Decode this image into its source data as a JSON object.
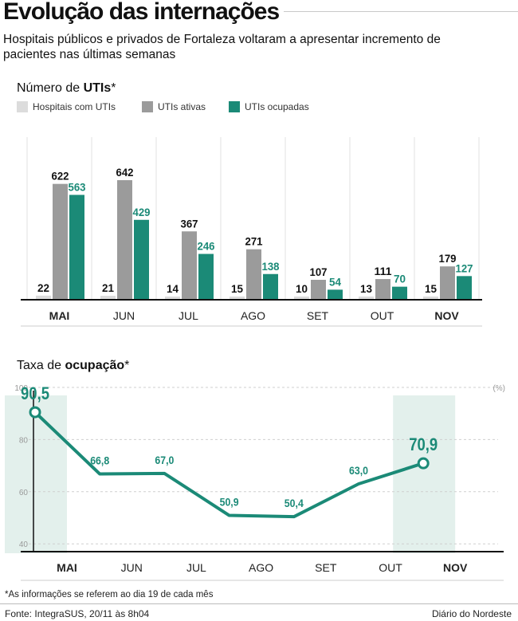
{
  "header": {
    "title": "Evolução das internações",
    "subtitle": "Hospitais públicos e privados de Fortaleza voltaram a apresentar incremento de pacientes nas últimas semanas"
  },
  "colors": {
    "light_gray": "#dcdcdc",
    "gray": "#9b9b9b",
    "teal": "#1b8a77",
    "highlight_bg": "#e3f0ec"
  },
  "uti_chart": {
    "title_prefix": "Número de ",
    "title_bold": "UTIs",
    "title_suffix": "*",
    "legend": [
      {
        "label": "Hospitais com UTIs"
      },
      {
        "label": "UTIs ativas"
      },
      {
        "label": "UTIs ocupadas"
      }
    ]
  },
  "occupancy_chart": {
    "title_prefix": "Taxa de ",
    "title_bold": "ocupação",
    "title_suffix": "*",
    "unit_label": "(%)",
    "y_ticks": [
      "100",
      "80",
      "60",
      "40"
    ]
  },
  "chart_data": [
    {
      "type": "bar",
      "title": "Número de UTIs*",
      "categories": [
        "MAI",
        "JUN",
        "JUL",
        "AGO",
        "SET",
        "OUT",
        "NOV"
      ],
      "highlighted_categories": [
        "MAI",
        "NOV"
      ],
      "series": [
        {
          "name": "Hospitais com UTIs",
          "values": [
            22,
            21,
            14,
            15,
            10,
            13,
            15
          ],
          "labels": [
            "22",
            "21",
            "14",
            "15",
            "10",
            "13",
            "15"
          ]
        },
        {
          "name": "UTIs ativas",
          "values": [
            622,
            642,
            367,
            271,
            107,
            111,
            179
          ],
          "labels": [
            "622",
            "642",
            "367",
            "271",
            "107",
            "111",
            "179"
          ]
        },
        {
          "name": "UTIs ocupadas",
          "values": [
            563,
            429,
            246,
            138,
            54,
            70,
            127
          ],
          "labels": [
            "563",
            "429",
            "246",
            "138",
            "54",
            "70",
            "127"
          ]
        }
      ],
      "ylim": [
        0,
        700
      ],
      "legend_position": "top-left"
    },
    {
      "type": "line",
      "title": "Taxa de ocupação*",
      "categories": [
        "MAI",
        "JUN",
        "JUL",
        "AGO",
        "SET",
        "OUT",
        "NOV"
      ],
      "highlighted_categories": [
        "MAI",
        "NOV"
      ],
      "series": [
        {
          "values": [
            90.5,
            66.8,
            67.0,
            50.9,
            50.4,
            63.0,
            70.9
          ],
          "labels": [
            "90,5",
            "66,8",
            "67,0",
            "50,9",
            "50,4",
            "63,0",
            "70,9"
          ]
        }
      ],
      "ylim": [
        37,
        100
      ],
      "ylabel": "(%)",
      "grid": true
    }
  ],
  "footer": {
    "footnote": "*As informações se referem ao dia 19 de cada mês",
    "source": "Fonte: IntegraSUS, 20/11 às 8h04",
    "credit": "Diário do Nordeste"
  }
}
